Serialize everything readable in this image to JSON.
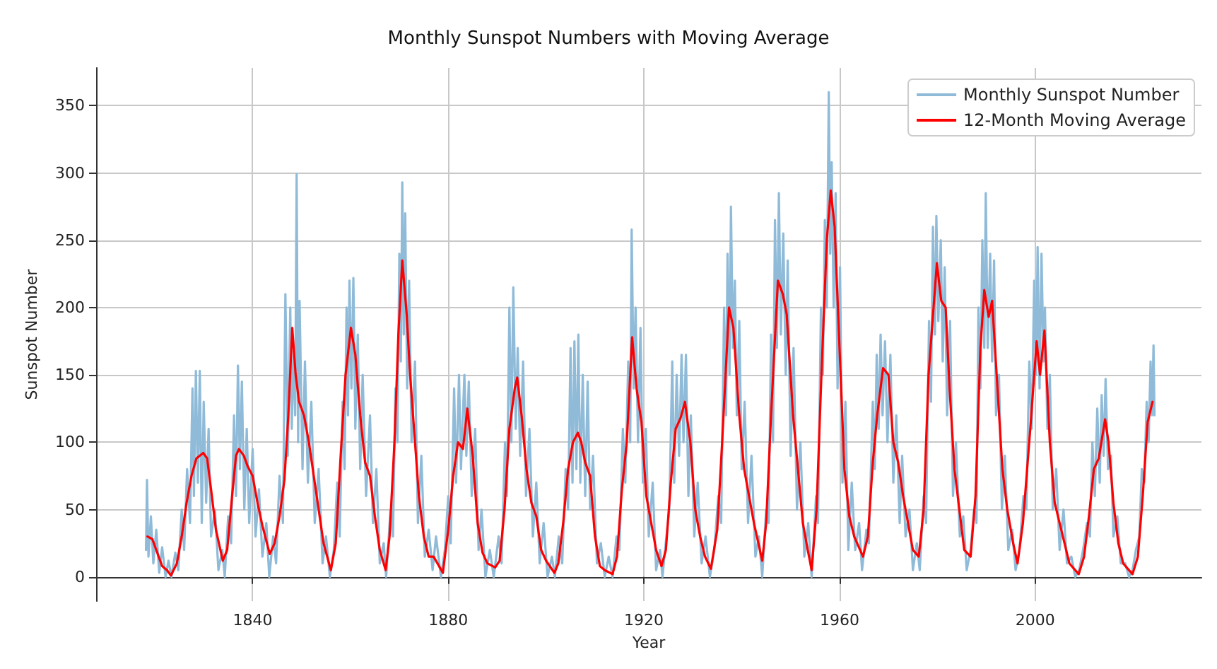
{
  "chart_data": {
    "type": "line",
    "title": "Monthly Sunspot Numbers with Moving Average",
    "xlabel": "Year",
    "ylabel": "Sunspot Number",
    "xlim": [
      1808,
      2034
    ],
    "xticks": [
      1840,
      1880,
      1920,
      1960,
      2000
    ],
    "ylim": [
      -18,
      378
    ],
    "yticks": [
      0,
      50,
      100,
      150,
      200,
      250,
      300,
      350
    ],
    "grid": true,
    "legend": "top right",
    "marker": "none",
    "line_style": "solid",
    "series": [
      {
        "name": "Monthly Sunspot Number",
        "color": "#8fbbd9",
        "x": [
          1818.2,
          1818.4,
          1818.7,
          1819.2,
          1819.7,
          1820.3,
          1820.9,
          1821.5,
          1822.2,
          1822.8,
          1823.4,
          1824.2,
          1824.8,
          1825.5,
          1826.0,
          1826.6,
          1827.2,
          1827.7,
          1828.0,
          1828.4,
          1828.8,
          1829.2,
          1829.6,
          1830.0,
          1830.5,
          1831.0,
          1831.5,
          1832.3,
          1833.0,
          1833.8,
          1834.3,
          1835.0,
          1835.6,
          1836.2,
          1836.6,
          1837.0,
          1837.4,
          1837.8,
          1838.3,
          1838.8,
          1839.3,
          1840.0,
          1840.6,
          1841.3,
          1842.0,
          1842.8,
          1843.4,
          1844.2,
          1844.8,
          1845.5,
          1846.2,
          1846.7,
          1847.2,
          1847.7,
          1848.0,
          1848.4,
          1848.7,
          1849.0,
          1849.3,
          1849.6,
          1850.2,
          1850.7,
          1851.3,
          1852.0,
          1852.7,
          1853.5,
          1854.3,
          1855.0,
          1855.8,
          1856.6,
          1857.3,
          1857.8,
          1858.4,
          1858.8,
          1859.2,
          1859.5,
          1859.8,
          1860.2,
          1860.6,
          1861.0,
          1861.5,
          1862.0,
          1862.5,
          1863.2,
          1864.0,
          1864.6,
          1865.3,
          1866.0,
          1866.8,
          1867.3,
          1868.2,
          1868.7,
          1869.2,
          1869.6,
          1870.0,
          1870.3,
          1870.6,
          1870.9,
          1871.2,
          1871.6,
          1872.0,
          1872.5,
          1873.2,
          1873.8,
          1874.5,
          1875.2,
          1876.0,
          1876.8,
          1877.5,
          1878.5,
          1879.3,
          1880.0,
          1880.5,
          1881.2,
          1881.6,
          1882.2,
          1882.6,
          1883.3,
          1883.7,
          1884.2,
          1884.8,
          1885.5,
          1886.2,
          1886.8,
          1887.6,
          1888.5,
          1889.3,
          1890.3,
          1890.9,
          1891.6,
          1892.0,
          1892.5,
          1892.9,
          1893.3,
          1893.8,
          1894.2,
          1894.7,
          1895.3,
          1895.9,
          1896.6,
          1897.3,
          1898.0,
          1898.7,
          1899.5,
          1900.3,
          1901.2,
          1901.8,
          1902.6,
          1903.3,
          1904.0,
          1904.5,
          1905.0,
          1905.4,
          1905.8,
          1906.2,
          1906.6,
          1907.0,
          1907.5,
          1908.0,
          1908.5,
          1909.0,
          1909.6,
          1910.4,
          1911.2,
          1912.0,
          1912.8,
          1913.6,
          1914.4,
          1915.0,
          1915.7,
          1916.2,
          1916.8,
          1917.2,
          1917.5,
          1917.9,
          1918.3,
          1918.8,
          1919.3,
          1919.8,
          1920.4,
          1921.0,
          1921.8,
          1922.5,
          1923.3,
          1923.8,
          1924.6,
          1925.2,
          1925.8,
          1926.2,
          1926.7,
          1927.2,
          1927.7,
          1928.1,
          1928.6,
          1929.1,
          1929.6,
          1930.3,
          1931.0,
          1931.8,
          1932.6,
          1933.5,
          1934.4,
          1935.2,
          1935.8,
          1936.4,
          1936.8,
          1937.1,
          1937.5,
          1937.8,
          1938.2,
          1938.6,
          1939.0,
          1939.5,
          1940.0,
          1940.6,
          1941.3,
          1942.0,
          1942.8,
          1943.5,
          1944.2,
          1945.0,
          1945.5,
          1946.0,
          1946.4,
          1946.8,
          1947.2,
          1947.6,
          1948.0,
          1948.5,
          1949.0,
          1949.4,
          1950.0,
          1950.6,
          1951.3,
          1952.0,
          1952.8,
          1953.6,
          1954.3,
          1955.2,
          1955.6,
          1956.2,
          1956.6,
          1957.0,
          1957.4,
          1957.8,
          1958.1,
          1958.4,
          1958.8,
          1959.2,
          1959.6,
          1960.1,
          1960.6,
          1961.2,
          1961.8,
          1962.5,
          1963.2,
          1964.0,
          1964.6,
          1965.5,
          1966.0,
          1966.8,
          1967.2,
          1967.6,
          1968.0,
          1968.4,
          1968.8,
          1969.3,
          1969.8,
          1970.4,
          1971.0,
          1971.6,
          1972.3,
          1972.8,
          1973.5,
          1974.3,
          1975.0,
          1975.8,
          1976.4,
          1977.2,
          1977.7,
          1978.3,
          1978.7,
          1979.1,
          1979.5,
          1979.8,
          1980.2,
          1980.7,
          1981.1,
          1981.5,
          1982.0,
          1982.6,
          1983.2,
          1983.8,
          1984.6,
          1985.3,
          1986.0,
          1986.8,
          1987.5,
          1988.0,
          1988.4,
          1988.8,
          1989.2,
          1989.6,
          1989.9,
          1990.3,
          1990.8,
          1991.2,
          1991.6,
          1992.0,
          1992.6,
          1993.2,
          1993.8,
          1994.5,
          1995.3,
          1996.0,
          1996.8,
          1997.6,
          1998.2,
          1998.8,
          1999.3,
          1999.8,
          2000.2,
          2000.5,
          2000.9,
          2001.3,
          2001.7,
          2002.0,
          2002.5,
          2003.0,
          2003.6,
          2004.3,
          2005.0,
          2005.8,
          2006.5,
          2007.4,
          2008.2,
          2009.0,
          2009.8,
          2010.6,
          2011.2,
          2011.7,
          2012.2,
          2012.7,
          2013.2,
          2013.6,
          2014.0,
          2014.4,
          2014.9,
          2015.5,
          2016.0,
          2016.8,
          2017.5,
          2018.4,
          2019.2,
          2019.9,
          2020.6,
          2021.3,
          2021.8,
          2022.3,
          2022.8,
          2023.2,
          2023.6,
          2023.9,
          2024.2,
          2024.4
        ],
        "values": [
          20,
          72,
          15,
          45,
          10,
          35,
          3,
          22,
          0,
          12,
          0,
          18,
          5,
          50,
          20,
          80,
          40,
          140,
          60,
          153,
          70,
          153,
          40,
          130,
          55,
          110,
          30,
          50,
          5,
          20,
          0,
          45,
          25,
          120,
          60,
          157,
          80,
          145,
          50,
          110,
          40,
          95,
          30,
          65,
          15,
          40,
          0,
          30,
          10,
          75,
          40,
          210,
          90,
          200,
          110,
          170,
          120,
          299,
          100,
          205,
          80,
          160,
          70,
          130,
          40,
          80,
          10,
          30,
          0,
          20,
          70,
          30,
          130,
          80,
          200,
          120,
          220,
          140,
          222,
          110,
          180,
          80,
          150,
          60,
          120,
          40,
          80,
          10,
          25,
          0,
          50,
          30,
          140,
          100,
          240,
          160,
          293,
          180,
          270,
          140,
          220,
          100,
          160,
          40,
          90,
          15,
          35,
          5,
          30,
          0,
          20,
          60,
          25,
          140,
          70,
          150,
          80,
          150,
          90,
          145,
          60,
          110,
          20,
          50,
          0,
          20,
          0,
          30,
          10,
          100,
          60,
          200,
          100,
          215,
          110,
          170,
          90,
          160,
          60,
          110,
          30,
          70,
          10,
          40,
          0,
          15,
          0,
          30,
          10,
          80,
          50,
          170,
          70,
          175,
          80,
          180,
          70,
          150,
          60,
          145,
          50,
          90,
          10,
          25,
          0,
          15,
          0,
          30,
          20,
          110,
          70,
          160,
          100,
          258,
          140,
          200,
          100,
          185,
          70,
          110,
          30,
          70,
          5,
          20,
          0,
          30,
          50,
          160,
          70,
          150,
          90,
          165,
          100,
          165,
          60,
          120,
          30,
          70,
          10,
          30,
          0,
          20,
          60,
          40,
          200,
          120,
          240,
          150,
          275,
          170,
          220,
          120,
          190,
          80,
          130,
          40,
          90,
          15,
          30,
          0,
          50,
          40,
          180,
          100,
          265,
          170,
          285,
          180,
          255,
          150,
          235,
          90,
          170,
          50,
          100,
          15,
          40,
          0,
          60,
          40,
          200,
          150,
          265,
          200,
          360,
          240,
          308,
          200,
          285,
          140,
          230,
          70,
          130,
          20,
          70,
          20,
          40,
          5,
          35,
          25,
          130,
          80,
          165,
          110,
          180,
          120,
          175,
          100,
          165,
          70,
          120,
          40,
          90,
          30,
          50,
          5,
          25,
          5,
          60,
          40,
          190,
          130,
          260,
          180,
          268,
          190,
          250,
          160,
          230,
          120,
          190,
          60,
          100,
          30,
          45,
          5,
          20,
          50,
          40,
          200,
          140,
          250,
          170,
          285,
          170,
          240,
          160,
          235,
          120,
          150,
          50,
          90,
          20,
          35,
          5,
          20,
          60,
          50,
          160,
          110,
          220,
          150,
          245,
          140,
          240,
          160,
          200,
          110,
          150,
          50,
          80,
          20,
          50,
          10,
          15,
          0,
          5,
          20,
          40,
          30,
          100,
          60,
          125,
          70,
          135,
          90,
          147,
          80,
          90,
          30,
          45,
          10,
          10,
          0,
          5,
          20,
          30,
          80,
          70,
          130,
          100,
          160,
          120,
          172,
          120
        ]
      },
      {
        "name": "12-Month Moving Average",
        "color": "#ff0000",
        "x": [
          1818.5,
          1819.5,
          1820.5,
          1821.5,
          1822.5,
          1823.3,
          1824.5,
          1825.5,
          1826.5,
          1827.5,
          1828.5,
          1829.9,
          1830.7,
          1831.5,
          1832.5,
          1833.9,
          1834.8,
          1835.8,
          1836.6,
          1837.2,
          1838.2,
          1839.0,
          1840.0,
          1841.0,
          1842.0,
          1843.5,
          1844.5,
          1845.5,
          1846.5,
          1847.3,
          1848.1,
          1848.8,
          1849.5,
          1850.5,
          1851.5,
          1852.5,
          1853.5,
          1854.5,
          1856.0,
          1857.0,
          1858.0,
          1859.0,
          1860.1,
          1861.0,
          1862.0,
          1863.0,
          1864.0,
          1865.0,
          1866.0,
          1867.2,
          1868.0,
          1869.0,
          1869.8,
          1870.6,
          1871.5,
          1872.2,
          1873.0,
          1874.0,
          1875.0,
          1876.0,
          1877.0,
          1878.9,
          1880.0,
          1881.0,
          1882.0,
          1883.0,
          1883.9,
          1885.0,
          1886.0,
          1887.0,
          1888.0,
          1889.6,
          1890.5,
          1891.5,
          1892.5,
          1893.6,
          1894.1,
          1895.0,
          1896.0,
          1897.0,
          1898.0,
          1899.0,
          1900.0,
          1901.7,
          1902.5,
          1903.5,
          1904.5,
          1905.5,
          1906.5,
          1907.2,
          1908.0,
          1909.0,
          1910.0,
          1911.0,
          1912.0,
          1913.6,
          1914.5,
          1915.5,
          1916.5,
          1917.6,
          1918.5,
          1919.5,
          1920.5,
          1921.5,
          1922.5,
          1923.6,
          1924.5,
          1925.5,
          1926.5,
          1927.5,
          1928.4,
          1929.5,
          1930.5,
          1931.5,
          1932.5,
          1933.7,
          1935.0,
          1936.0,
          1937.4,
          1938.3,
          1939.5,
          1940.5,
          1941.5,
          1942.5,
          1944.2,
          1945.0,
          1946.0,
          1947.4,
          1948.4,
          1949.2,
          1950.5,
          1951.5,
          1952.5,
          1953.5,
          1954.3,
          1955.3,
          1956.3,
          1957.4,
          1958.2,
          1959.0,
          1960.0,
          1961.0,
          1962.0,
          1963.0,
          1964.8,
          1965.8,
          1966.8,
          1967.7,
          1968.9,
          1970.0,
          1971.0,
          1972.0,
          1973.0,
          1974.0,
          1975.0,
          1976.2,
          1977.2,
          1978.2,
          1979.9,
          1980.8,
          1981.7,
          1982.5,
          1983.5,
          1984.5,
          1985.5,
          1986.8,
          1987.8,
          1988.8,
          1989.6,
          1990.5,
          1991.2,
          1992.3,
          1993.3,
          1994.3,
          1995.5,
          1996.4,
          1997.5,
          1999.0,
          2000.3,
          2001.0,
          2001.9,
          2003.0,
          2004.0,
          2005.0,
          2006.0,
          2007.0,
          2008.9,
          2010.0,
          2011.0,
          2012.0,
          2013.0,
          2014.3,
          2015.0,
          2016.0,
          2017.0,
          2018.0,
          2019.9,
          2021.0,
          2022.0,
          2023.0,
          2024.0
        ],
        "values": [
          30,
          28,
          18,
          8,
          5,
          1,
          10,
          30,
          55,
          75,
          88,
          92,
          88,
          65,
          35,
          12,
          20,
          60,
          90,
          95,
          90,
          82,
          75,
          55,
          38,
          17,
          25,
          45,
          72,
          120,
          185,
          150,
          130,
          120,
          100,
          75,
          50,
          25,
          5,
          25,
          90,
          150,
          185,
          165,
          120,
          85,
          75,
          45,
          20,
          5,
          30,
          100,
          180,
          235,
          195,
          150,
          110,
          60,
          30,
          15,
          15,
          3,
          35,
          75,
          100,
          95,
          125,
          90,
          40,
          18,
          10,
          7,
          12,
          50,
          110,
          140,
          148,
          120,
          80,
          55,
          45,
          20,
          12,
          3,
          10,
          40,
          80,
          100,
          107,
          100,
          85,
          75,
          30,
          8,
          5,
          2,
          15,
          65,
          100,
          178,
          140,
          115,
          60,
          40,
          20,
          8,
          20,
          70,
          110,
          118,
          130,
          100,
          50,
          30,
          15,
          6,
          35,
          100,
          200,
          185,
          120,
          80,
          60,
          40,
          12,
          40,
          120,
          220,
          210,
          195,
          120,
          80,
          40,
          20,
          5,
          50,
          150,
          250,
          287,
          260,
          170,
          80,
          45,
          30,
          15,
          30,
          85,
          120,
          155,
          150,
          100,
          85,
          60,
          40,
          20,
          15,
          50,
          150,
          233,
          205,
          200,
          140,
          80,
          50,
          20,
          15,
          60,
          170,
          213,
          193,
          205,
          140,
          80,
          50,
          25,
          10,
          40,
          110,
          175,
          150,
          183,
          100,
          55,
          40,
          25,
          10,
          2,
          15,
          45,
          80,
          88,
          117,
          100,
          55,
          25,
          10,
          2,
          15,
          60,
          115,
          130
        ]
      }
    ]
  }
}
